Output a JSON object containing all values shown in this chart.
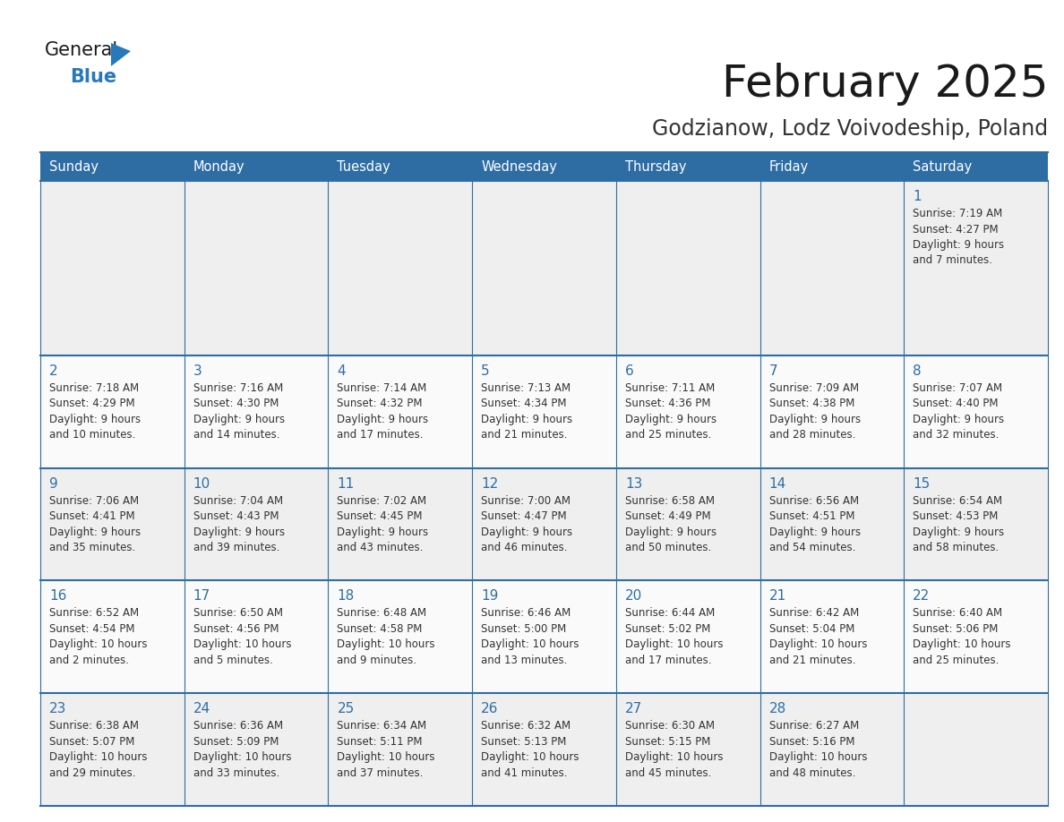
{
  "title": "February 2025",
  "subtitle": "Godzianow, Lodz Voivodeship, Poland",
  "days_of_week": [
    "Sunday",
    "Monday",
    "Tuesday",
    "Wednesday",
    "Thursday",
    "Friday",
    "Saturday"
  ],
  "header_bg": "#2E6DA4",
  "header_text": "#FFFFFF",
  "cell_bg_odd": "#EFEFEF",
  "cell_bg_even": "#FAFAFA",
  "cell_border": "#2E6DA4",
  "title_color": "#1a1a1a",
  "subtitle_color": "#333333",
  "day_number_color": "#2E6DA4",
  "cell_text_color": "#333333",
  "logo_general_color": "#1a1a1a",
  "logo_blue_color": "#2779BD",
  "calendar_data": [
    [
      null,
      null,
      null,
      null,
      null,
      null,
      {
        "day": 1,
        "sunrise": "7:19 AM",
        "sunset": "4:27 PM",
        "daylight": "9 hours and 7 minutes."
      }
    ],
    [
      {
        "day": 2,
        "sunrise": "7:18 AM",
        "sunset": "4:29 PM",
        "daylight": "9 hours and 10 minutes."
      },
      {
        "day": 3,
        "sunrise": "7:16 AM",
        "sunset": "4:30 PM",
        "daylight": "9 hours and 14 minutes."
      },
      {
        "day": 4,
        "sunrise": "7:14 AM",
        "sunset": "4:32 PM",
        "daylight": "9 hours and 17 minutes."
      },
      {
        "day": 5,
        "sunrise": "7:13 AM",
        "sunset": "4:34 PM",
        "daylight": "9 hours and 21 minutes."
      },
      {
        "day": 6,
        "sunrise": "7:11 AM",
        "sunset": "4:36 PM",
        "daylight": "9 hours and 25 minutes."
      },
      {
        "day": 7,
        "sunrise": "7:09 AM",
        "sunset": "4:38 PM",
        "daylight": "9 hours and 28 minutes."
      },
      {
        "day": 8,
        "sunrise": "7:07 AM",
        "sunset": "4:40 PM",
        "daylight": "9 hours and 32 minutes."
      }
    ],
    [
      {
        "day": 9,
        "sunrise": "7:06 AM",
        "sunset": "4:41 PM",
        "daylight": "9 hours and 35 minutes."
      },
      {
        "day": 10,
        "sunrise": "7:04 AM",
        "sunset": "4:43 PM",
        "daylight": "9 hours and 39 minutes."
      },
      {
        "day": 11,
        "sunrise": "7:02 AM",
        "sunset": "4:45 PM",
        "daylight": "9 hours and 43 minutes."
      },
      {
        "day": 12,
        "sunrise": "7:00 AM",
        "sunset": "4:47 PM",
        "daylight": "9 hours and 46 minutes."
      },
      {
        "day": 13,
        "sunrise": "6:58 AM",
        "sunset": "4:49 PM",
        "daylight": "9 hours and 50 minutes."
      },
      {
        "day": 14,
        "sunrise": "6:56 AM",
        "sunset": "4:51 PM",
        "daylight": "9 hours and 54 minutes."
      },
      {
        "day": 15,
        "sunrise": "6:54 AM",
        "sunset": "4:53 PM",
        "daylight": "9 hours and 58 minutes."
      }
    ],
    [
      {
        "day": 16,
        "sunrise": "6:52 AM",
        "sunset": "4:54 PM",
        "daylight": "10 hours and 2 minutes."
      },
      {
        "day": 17,
        "sunrise": "6:50 AM",
        "sunset": "4:56 PM",
        "daylight": "10 hours and 5 minutes."
      },
      {
        "day": 18,
        "sunrise": "6:48 AM",
        "sunset": "4:58 PM",
        "daylight": "10 hours and 9 minutes."
      },
      {
        "day": 19,
        "sunrise": "6:46 AM",
        "sunset": "5:00 PM",
        "daylight": "10 hours and 13 minutes."
      },
      {
        "day": 20,
        "sunrise": "6:44 AM",
        "sunset": "5:02 PM",
        "daylight": "10 hours and 17 minutes."
      },
      {
        "day": 21,
        "sunrise": "6:42 AM",
        "sunset": "5:04 PM",
        "daylight": "10 hours and 21 minutes."
      },
      {
        "day": 22,
        "sunrise": "6:40 AM",
        "sunset": "5:06 PM",
        "daylight": "10 hours and 25 minutes."
      }
    ],
    [
      {
        "day": 23,
        "sunrise": "6:38 AM",
        "sunset": "5:07 PM",
        "daylight": "10 hours and 29 minutes."
      },
      {
        "day": 24,
        "sunrise": "6:36 AM",
        "sunset": "5:09 PM",
        "daylight": "10 hours and 33 minutes."
      },
      {
        "day": 25,
        "sunrise": "6:34 AM",
        "sunset": "5:11 PM",
        "daylight": "10 hours and 37 minutes."
      },
      {
        "day": 26,
        "sunrise": "6:32 AM",
        "sunset": "5:13 PM",
        "daylight": "10 hours and 41 minutes."
      },
      {
        "day": 27,
        "sunrise": "6:30 AM",
        "sunset": "5:15 PM",
        "daylight": "10 hours and 45 minutes."
      },
      {
        "day": 28,
        "sunrise": "6:27 AM",
        "sunset": "5:16 PM",
        "daylight": "10 hours and 48 minutes."
      },
      null
    ]
  ]
}
